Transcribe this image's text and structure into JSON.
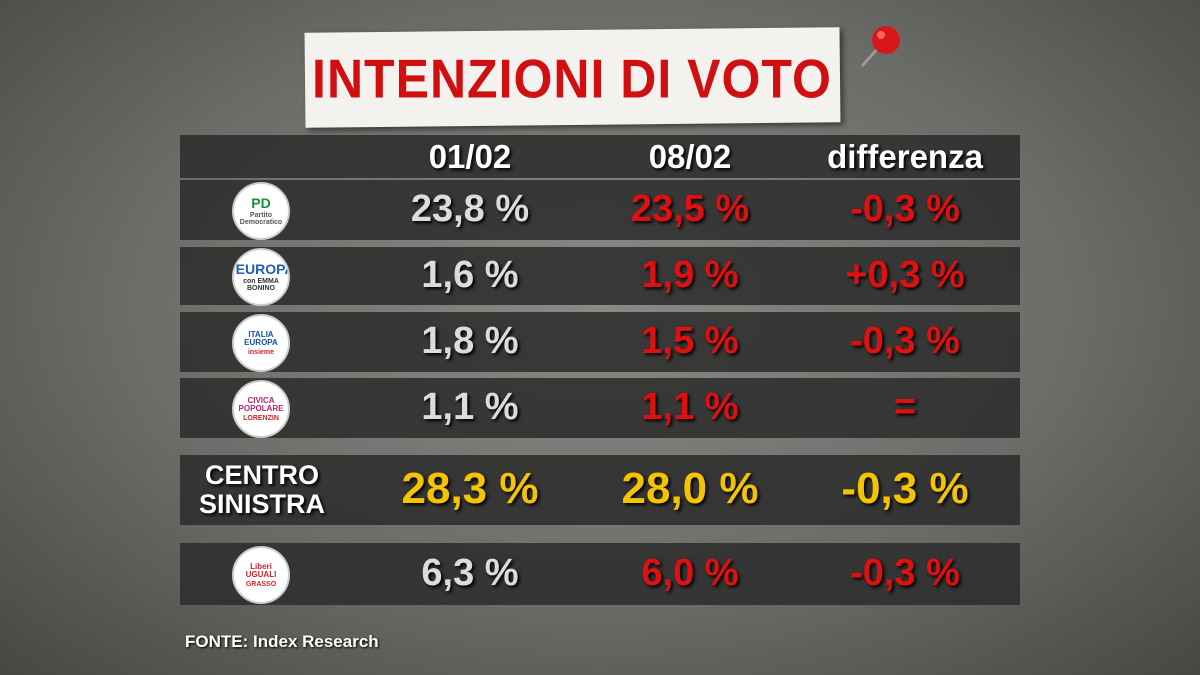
{
  "title": "INTENZIONI DI VOTO",
  "columns": [
    "01/02",
    "08/02",
    "differenza"
  ],
  "rows": [
    {
      "logo": [
        "PD",
        "Partito Democratico"
      ],
      "values": [
        "23,8 %",
        "23,5 %",
        "-0,3 %"
      ]
    },
    {
      "logo": [
        "+EUROPA",
        "con EMMA BONINO"
      ],
      "values": [
        "1,6 %",
        "1,9 %",
        "+0,3 %"
      ]
    },
    {
      "logo": [
        "ITALIA EUROPA",
        "insieme"
      ],
      "values": [
        "1,8 %",
        "1,5 %",
        "-0,3 %"
      ]
    },
    {
      "logo": [
        "CIVICA POPOLARE",
        "LORENZIN"
      ],
      "values": [
        "1,1 %",
        "1,1 %",
        "="
      ]
    },
    {
      "label": [
        "CENTRO",
        "SINISTRA"
      ],
      "values": [
        "28,3 %",
        "28,0 %",
        "-0,3 %"
      ]
    },
    {
      "logo": [
        "Liberi UGUALI",
        "GRASSO"
      ],
      "values": [
        "6,3 %",
        "6,0 %",
        "-0,3 %"
      ]
    }
  ],
  "source": "FONTE:  Index Research"
}
